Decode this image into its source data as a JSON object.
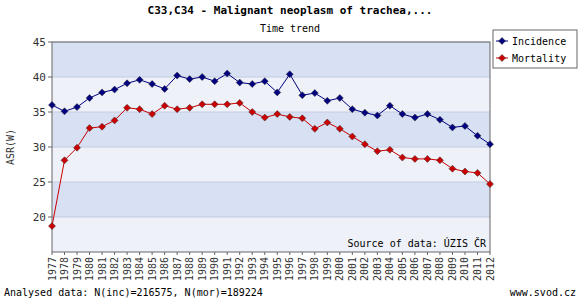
{
  "chart_data": {
    "type": "line",
    "title": "C33,C34 - Malignant neoplasm of trachea,...",
    "subtitle": "Time trend",
    "y_label": "ASR(W)",
    "source": "Source of data: ÚZIS ČR",
    "footer": "Analysed data: N(inc)=216575, N(mor)=189224",
    "footer_right": "www.svod.cz",
    "categories": [
      "1977",
      "1978",
      "1979",
      "1980",
      "1981",
      "1982",
      "1983",
      "1984",
      "1985",
      "1986",
      "1987",
      "1988",
      "1989",
      "1990",
      "1991",
      "1992",
      "1993",
      "1994",
      "1995",
      "1996",
      "1997",
      "1998",
      "1999",
      "2000",
      "2001",
      "2002",
      "2003",
      "2004",
      "2005",
      "2006",
      "2007",
      "2008",
      "2009",
      "2010",
      "2011",
      "2012"
    ],
    "series": [
      {
        "name": "Incidence",
        "color": "#000080",
        "marker": "diamond",
        "values": [
          36.0,
          35.1,
          35.7,
          37.0,
          37.8,
          38.2,
          39.1,
          39.6,
          39.0,
          38.3,
          40.2,
          39.7,
          40.0,
          39.4,
          40.5,
          39.2,
          39.0,
          39.4,
          37.8,
          40.4,
          37.4,
          37.7,
          36.6,
          37.0,
          35.4,
          34.9,
          34.5,
          35.9,
          34.7,
          34.2,
          34.7,
          33.9,
          32.8,
          33.0,
          31.6,
          30.4
        ]
      },
      {
        "name": "Mortality",
        "color": "#cc0000",
        "marker": "diamond",
        "values": [
          18.7,
          28.1,
          29.9,
          32.7,
          32.9,
          33.8,
          35.6,
          35.4,
          34.7,
          35.9,
          35.4,
          35.6,
          36.1,
          36.1,
          36.1,
          36.3,
          35.0,
          34.2,
          34.7,
          34.3,
          34.1,
          32.6,
          33.5,
          32.6,
          31.5,
          30.4,
          29.4,
          29.6,
          28.5,
          28.3,
          28.3,
          28.1,
          26.9,
          26.5,
          26.3,
          24.7
        ]
      }
    ],
    "ylim": [
      15,
      45
    ],
    "yticks": [
      20,
      25,
      30,
      35,
      40,
      45
    ],
    "grid": true,
    "legend": "right"
  }
}
